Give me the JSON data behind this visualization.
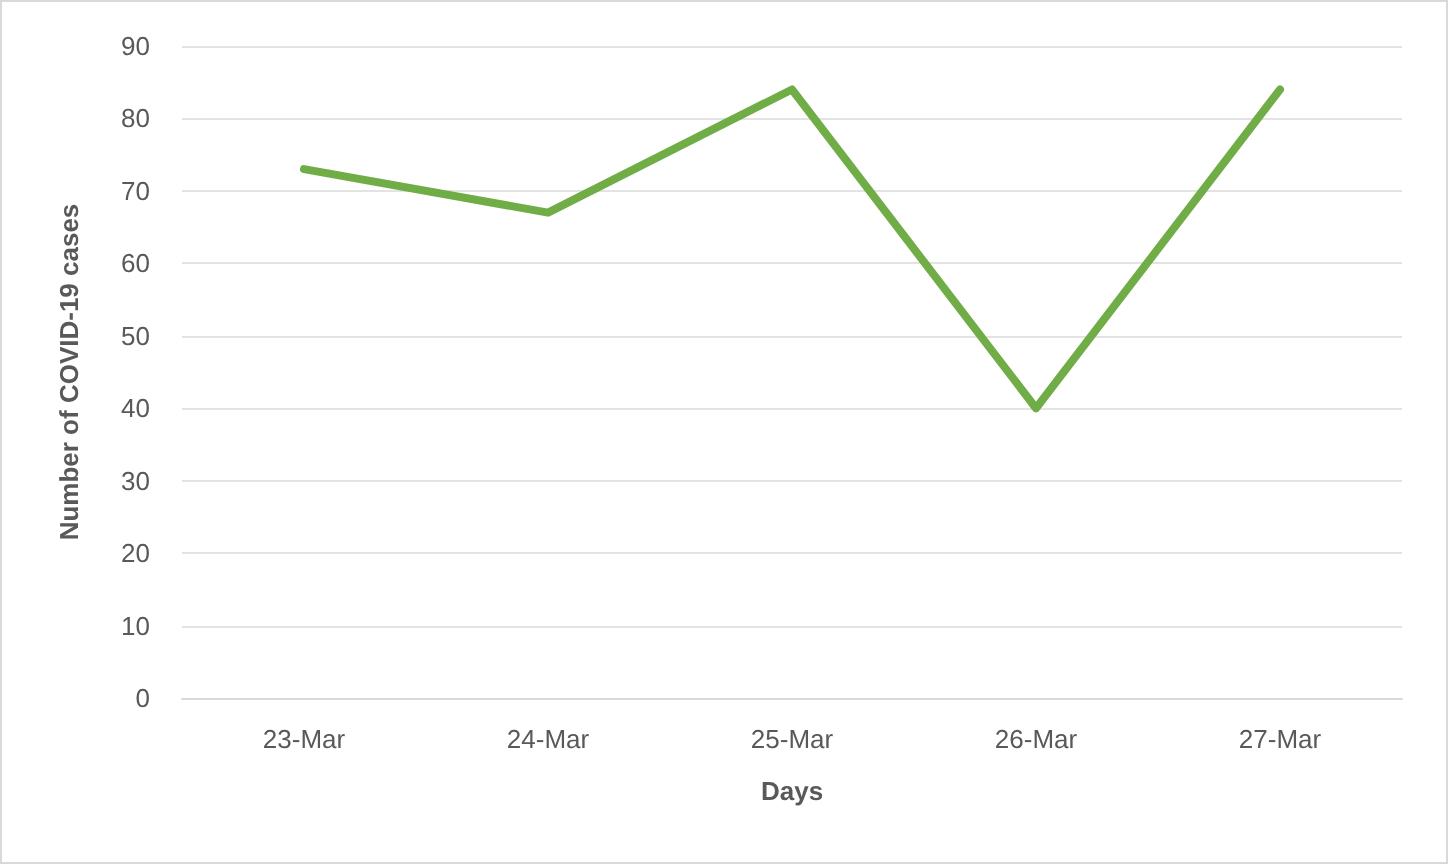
{
  "chart_data": {
    "type": "line",
    "xlabel": "Days",
    "ylabel": "Number of COVID-19 cases",
    "categories": [
      "23-Mar",
      "24-Mar",
      "25-Mar",
      "26-Mar",
      "27-Mar"
    ],
    "series": [
      {
        "color": "#70ad47",
        "values": [
          73,
          67,
          84,
          40,
          84
        ]
      }
    ],
    "ylim": [
      0,
      90
    ],
    "yticks": [
      0,
      10,
      20,
      30,
      40,
      50,
      60,
      70,
      80,
      90
    ],
    "grid": "y",
    "marker": "none",
    "line_style": "solid"
  }
}
